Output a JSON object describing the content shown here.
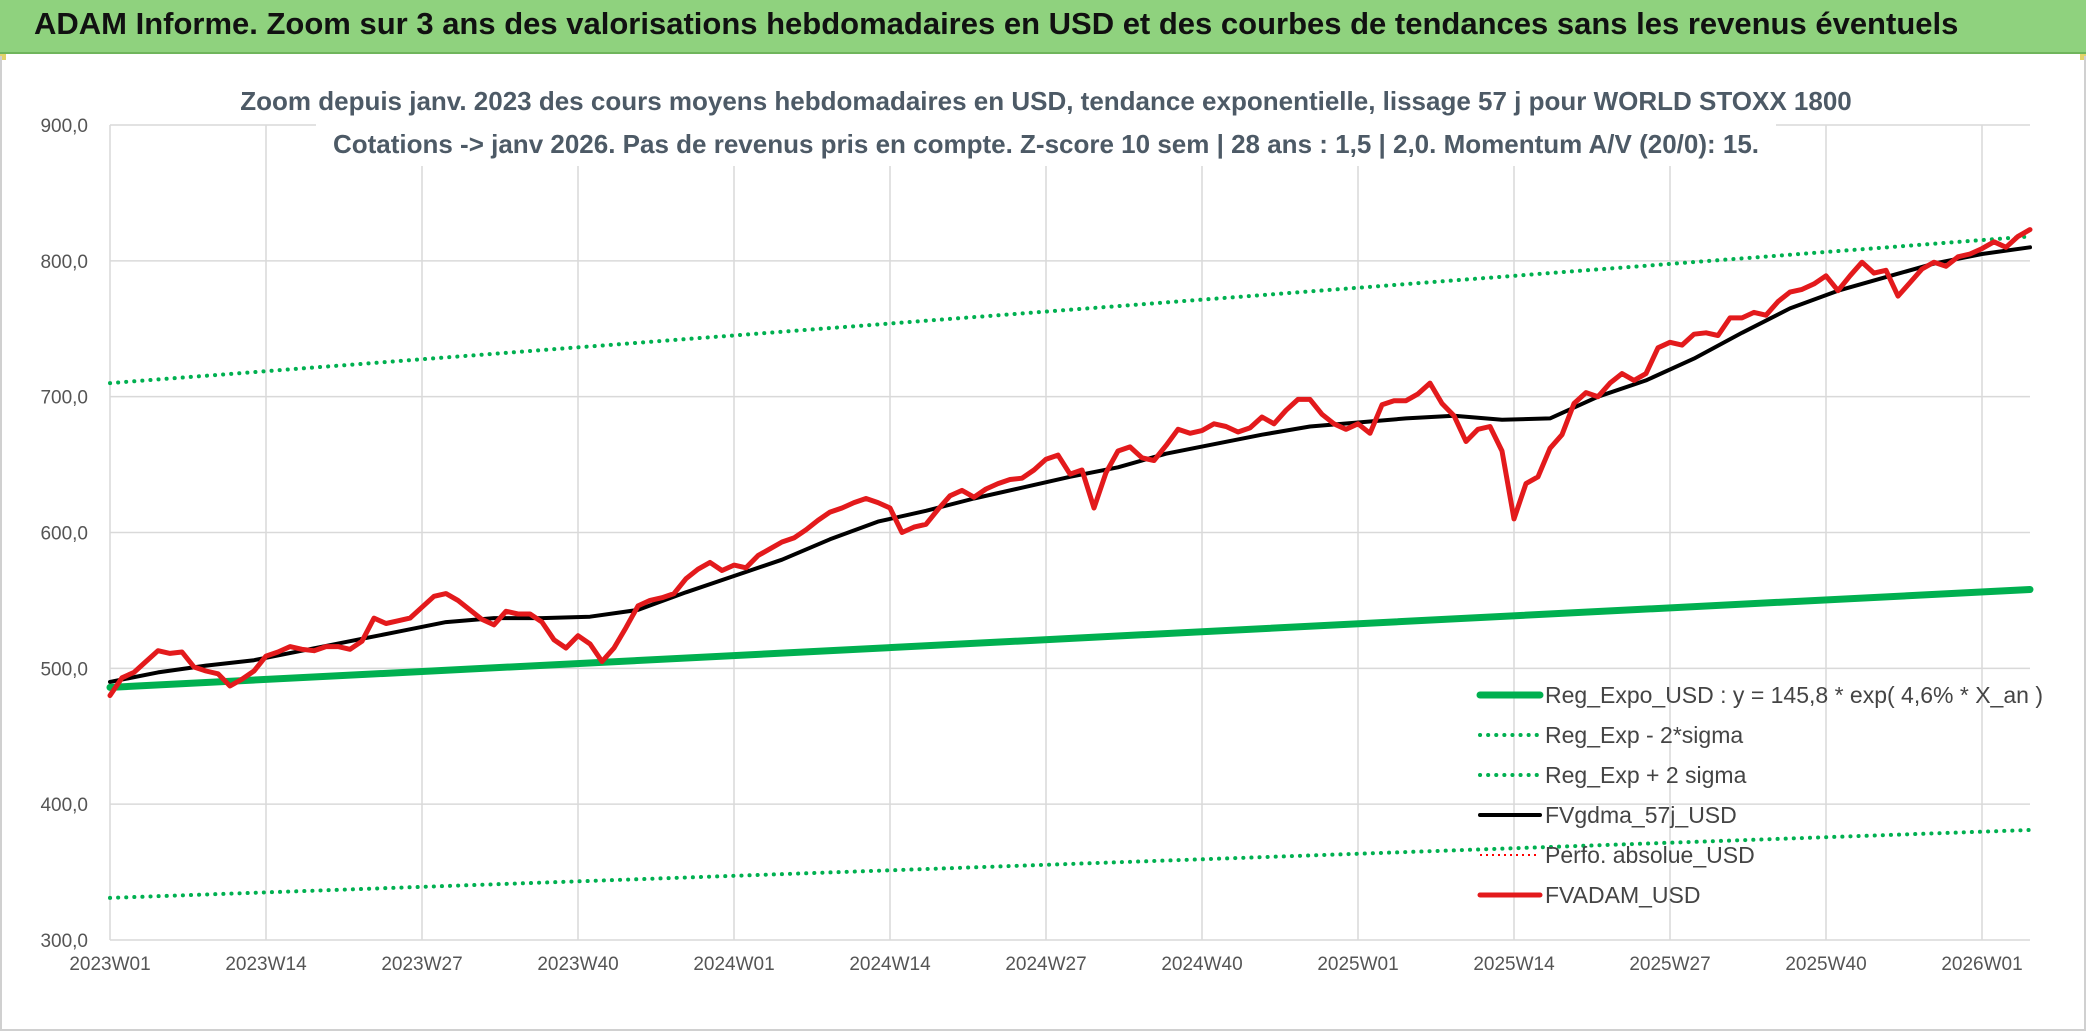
{
  "header": {
    "banner_title": "ADAM Informe. Zoom sur 3 ans des valorisations hebdomadaires en USD et des courbes de tendances sans les revenus éventuels"
  },
  "colors": {
    "banner": "#8fd27e",
    "reg_expo": "#00b050",
    "fvgdma": "#000000",
    "fvadam": "#e31a1c",
    "perfo": "#ff0000",
    "grid": "#d9d9d9"
  },
  "chart_data": {
    "type": "line",
    "title": "Zoom depuis janv. 2023 des cours moyens hebdomadaires en USD, tendance exponentielle, lissage 57 j pour WORLD STOXX 1800",
    "subtitle": "Cotations -> janv 2026. Pas de revenus pris en compte. Z-score 10 sem | 28 ans : 1,5 | 2,0. Momentum A/V (20/0): 15.",
    "xlabel": "",
    "ylabel": "",
    "ylim": [
      300,
      900
    ],
    "yticks": [
      "300,0",
      "400,0",
      "500,0",
      "600,0",
      "700,0",
      "800,0",
      "900,0"
    ],
    "xlim": [
      0,
      160
    ],
    "xticks": [
      {
        "label": "2023W01",
        "x": 0
      },
      {
        "label": "2023W14",
        "x": 13
      },
      {
        "label": "2023W27",
        "x": 26
      },
      {
        "label": "2023W40",
        "x": 39
      },
      {
        "label": "2024W01",
        "x": 52
      },
      {
        "label": "2024W14",
        "x": 65
      },
      {
        "label": "2024W27",
        "x": 78
      },
      {
        "label": "2024W40",
        "x": 91
      },
      {
        "label": "2025W01",
        "x": 104
      },
      {
        "label": "2025W14",
        "x": 117
      },
      {
        "label": "2025W27",
        "x": 130
      },
      {
        "label": "2025W40",
        "x": 143
      },
      {
        "label": "2026W01",
        "x": 156
      }
    ],
    "grid": true,
    "legend_position": "bottom-right",
    "series": [
      {
        "name": "Reg_Expo_USD : y = 145,8 * exp( 4,6% *  X_an )",
        "style": "solid-thick",
        "color": "#00b050",
        "x": [
          0,
          160
        ],
        "values": [
          486,
          558
        ]
      },
      {
        "name": "Reg_Exp - 2*sigma",
        "style": "dotted",
        "color": "#00b050",
        "x": [
          0,
          160
        ],
        "values": [
          331,
          381
        ]
      },
      {
        "name": "Reg_Exp + 2 sigma",
        "style": "dotted",
        "color": "#00b050",
        "x": [
          0,
          160
        ],
        "values": [
          710,
          818
        ]
      },
      {
        "name": "FVgdma_57j_USD",
        "style": "solid",
        "color": "#000000",
        "x": [
          0,
          4,
          8,
          12,
          16,
          20,
          24,
          28,
          32,
          36,
          40,
          44,
          48,
          52,
          56,
          60,
          64,
          68,
          72,
          76,
          80,
          84,
          88,
          92,
          96,
          100,
          104,
          108,
          112,
          116,
          120,
          124,
          128,
          132,
          136,
          140,
          144,
          148,
          152,
          156,
          160
        ],
        "values": [
          490,
          497,
          502,
          506,
          513,
          520,
          527,
          534,
          537,
          537,
          538,
          543,
          556,
          568,
          580,
          595,
          608,
          616,
          625,
          633,
          641,
          648,
          658,
          665,
          672,
          678,
          681,
          684,
          686,
          683,
          684,
          700,
          712,
          728,
          747,
          765,
          778,
          788,
          798,
          805,
          810
        ]
      },
      {
        "name": "Perfo. absolue_USD",
        "style": "dotted-thin",
        "color": "#ff0000",
        "x": [],
        "values": []
      },
      {
        "name": "FVADAM_USD",
        "style": "solid-thick",
        "color": "#e31a1c",
        "x": [
          0,
          1,
          2,
          3,
          4,
          5,
          6,
          7,
          8,
          9,
          10,
          11,
          12,
          13,
          14,
          15,
          16,
          17,
          18,
          19,
          20,
          21,
          22,
          23,
          24,
          25,
          26,
          27,
          28,
          29,
          30,
          31,
          32,
          33,
          34,
          35,
          36,
          37,
          38,
          39,
          40,
          41,
          42,
          43,
          44,
          45,
          46,
          47,
          48,
          49,
          50,
          51,
          52,
          53,
          54,
          55,
          56,
          57,
          58,
          59,
          60,
          61,
          62,
          63,
          64,
          65,
          66,
          67,
          68,
          69,
          70,
          71,
          72,
          73,
          74,
          75,
          76,
          77,
          78,
          79,
          80,
          81,
          82,
          83,
          84,
          85,
          86,
          87,
          88,
          89,
          90,
          91,
          92,
          93,
          94,
          95,
          96,
          97,
          98,
          99,
          100,
          101,
          102,
          103,
          104,
          105,
          106,
          107,
          108,
          109,
          110,
          111,
          112,
          113,
          114,
          115,
          116,
          117,
          118,
          119,
          120,
          121,
          122,
          123,
          124,
          125,
          126,
          127,
          128,
          129,
          130,
          131,
          132,
          133,
          134,
          135,
          136,
          137,
          138,
          139,
          140,
          141,
          142,
          143,
          144,
          145,
          146,
          147,
          148,
          149,
          150,
          151,
          152,
          153,
          154,
          155,
          156,
          157,
          158,
          159,
          160
        ],
        "values": [
          480,
          493,
          497,
          505,
          513,
          511,
          512,
          501,
          498,
          496,
          487,
          492,
          498,
          509,
          512,
          516,
          514,
          513,
          516,
          516,
          514,
          520,
          537,
          533,
          535,
          537,
          545,
          553,
          555,
          550,
          543,
          536,
          532,
          542,
          540,
          540,
          534,
          521,
          515,
          524,
          518,
          505,
          515,
          530,
          546,
          550,
          552,
          555,
          566,
          573,
          578,
          572,
          576,
          574,
          583,
          588,
          593,
          596,
          602,
          609,
          615,
          618,
          622,
          625,
          622,
          618,
          600,
          604,
          606,
          617,
          627,
          631,
          626,
          632,
          636,
          639,
          640,
          646,
          654,
          657,
          643,
          646,
          618,
          644,
          660,
          663,
          655,
          653,
          664,
          676,
          673,
          675,
          680,
          678,
          674,
          677,
          685,
          680,
          690,
          698,
          698,
          687,
          680,
          676,
          680,
          673,
          694,
          697,
          697,
          702,
          710,
          695,
          686,
          667,
          676,
          678,
          660,
          610,
          636,
          641,
          662,
          672,
          695,
          703,
          700,
          710,
          717,
          712,
          717,
          736,
          740,
          738,
          746,
          747,
          745,
          758,
          758,
          762,
          760,
          770,
          777,
          779,
          783,
          789,
          778,
          789,
          799,
          791,
          793,
          774,
          784,
          794,
          799,
          796,
          803,
          805,
          809,
          814,
          810,
          818,
          823
        ]
      }
    ]
  }
}
